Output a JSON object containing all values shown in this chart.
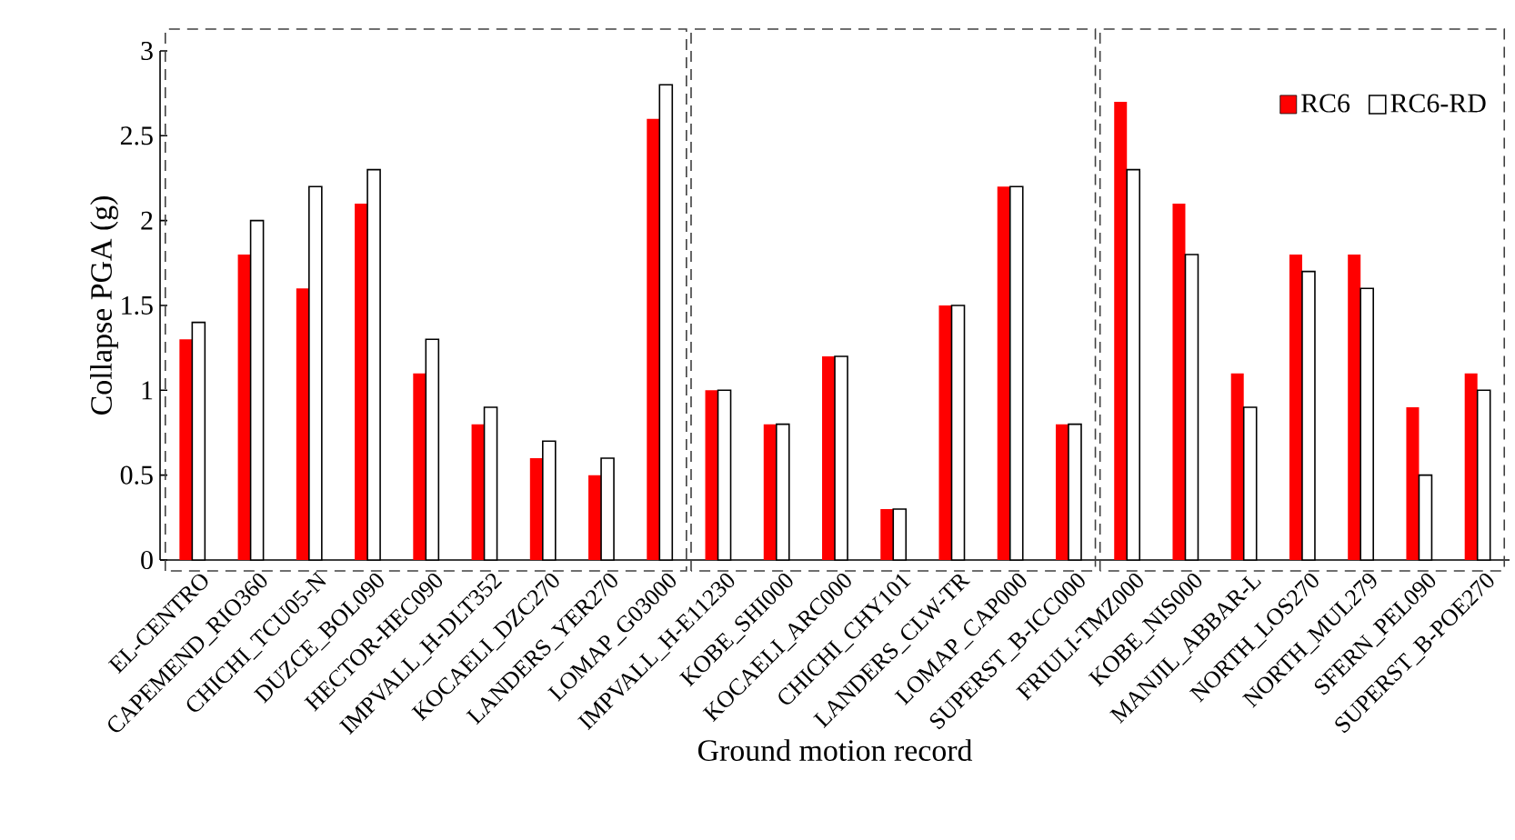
{
  "chart_data": {
    "type": "bar",
    "xlabel": "Ground motion record",
    "ylabel": "Collapse PGA (g)",
    "categories": [
      "EL-CENTRO",
      "CAPEMEND_RIO360",
      "CHICHI_TCU05-N",
      "DUZCE_BOL090",
      "HECTOR-HEC090",
      "IMPVALL_H-DLT352",
      "KOCAELI_DZC270",
      "LANDERS_YER270",
      "LOMAP_G03000",
      "IMPVALL_H-E11230",
      "KOBE_SHI000",
      "KOCAELI_ARC000",
      "CHICHI_CHY101",
      "LANDERS_CLW-TR",
      "LOMAP_CAP000",
      "SUPERST_B-ICC000",
      "FRIULI-TMZ000",
      "KOBE_NIS000",
      "MANJIL_ABBAR-L",
      "NORTH_LOS270",
      "NORTH_MUL279",
      "SFERN_PEL090",
      "SUPERST_B-POE270"
    ],
    "series": [
      {
        "name": "RC6",
        "color": "#ff0000",
        "values": [
          1.3,
          1.8,
          1.6,
          2.1,
          1.1,
          0.8,
          0.6,
          0.5,
          2.6,
          1.0,
          0.8,
          1.2,
          0.3,
          1.5,
          2.2,
          0.8,
          2.7,
          2.1,
          1.1,
          1.8,
          1.8,
          0.9,
          1.1
        ]
      },
      {
        "name": "RC6-RD",
        "color": "#ffffff",
        "values": [
          1.4,
          2.0,
          2.2,
          2.3,
          1.3,
          0.9,
          0.7,
          0.6,
          2.8,
          1.0,
          0.8,
          1.2,
          0.3,
          1.5,
          2.2,
          0.8,
          2.3,
          1.8,
          0.9,
          1.7,
          1.6,
          0.5,
          1.0
        ]
      }
    ],
    "ylim": [
      0,
      3
    ],
    "yticks": [
      0,
      0.5,
      1,
      1.5,
      2,
      2.5,
      3
    ],
    "grid": false,
    "legend": "top right"
  }
}
